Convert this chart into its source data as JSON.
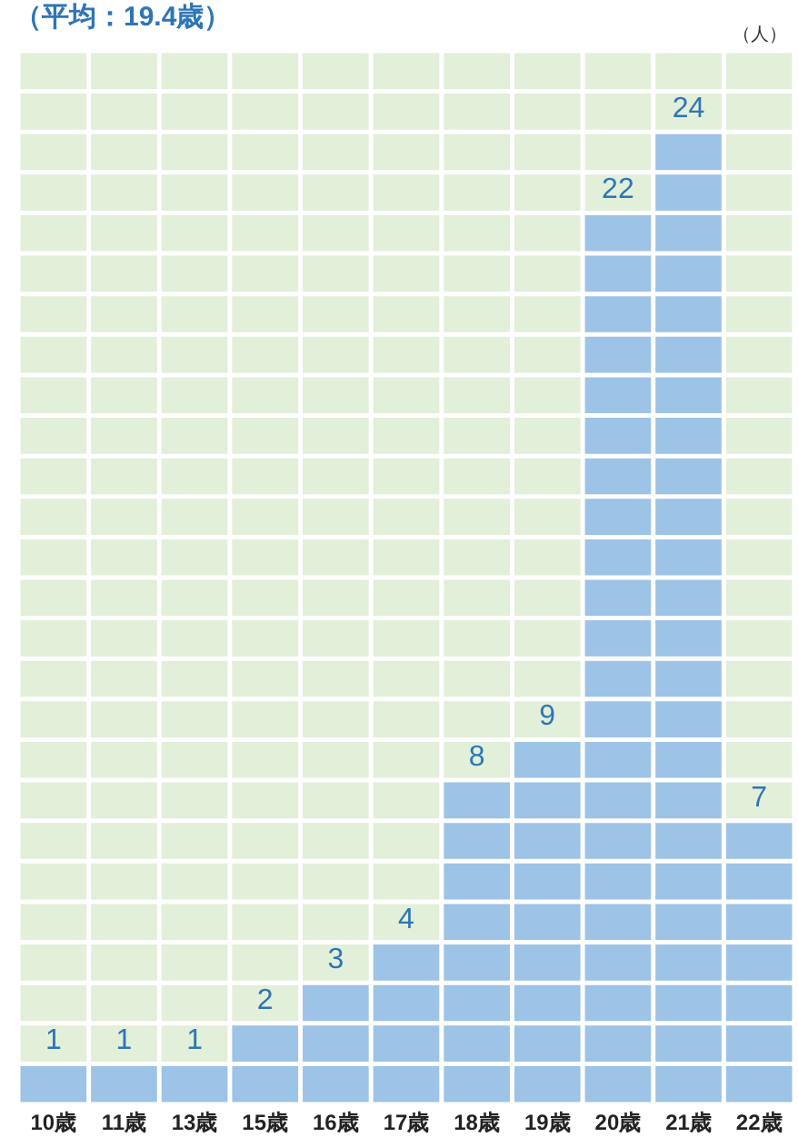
{
  "chart_data": {
    "type": "bar",
    "title": "（平均：19.4歳）",
    "ylabel": "（人）",
    "categories": [
      "10歳",
      "11歳",
      "13歳",
      "15歳",
      "16歳",
      "17歳",
      "18歳",
      "19歳",
      "20歳",
      "21歳",
      "22歳"
    ],
    "values": [
      1,
      1,
      1,
      2,
      3,
      4,
      8,
      9,
      22,
      24,
      7
    ],
    "color": "#9dc3e6",
    "ylim": [
      0,
      26
    ],
    "grid": true,
    "data_labels": true
  }
}
